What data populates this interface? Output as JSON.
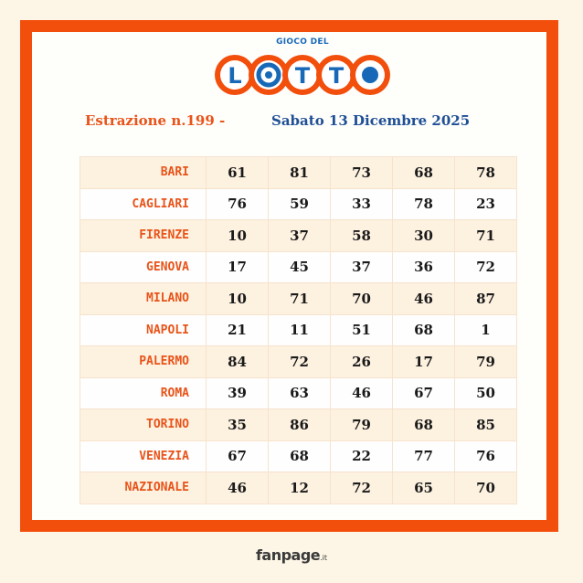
{
  "logo": {
    "small_text": "GIOCO DEL",
    "letters": [
      "L",
      "T",
      "T"
    ]
  },
  "header": {
    "draw_label": "Estrazione n.199 -",
    "date": "Sabato 13 Dicembre 2025"
  },
  "rows": [
    {
      "city": "BARI",
      "numbers": [
        "61",
        "81",
        "73",
        "68",
        "78"
      ]
    },
    {
      "city": "CAGLIARI",
      "numbers": [
        "76",
        "59",
        "33",
        "78",
        "23"
      ]
    },
    {
      "city": "FIRENZE",
      "numbers": [
        "10",
        "37",
        "58",
        "30",
        "71"
      ]
    },
    {
      "city": "GENOVA",
      "numbers": [
        "17",
        "45",
        "37",
        "36",
        "72"
      ]
    },
    {
      "city": "MILANO",
      "numbers": [
        "10",
        "71",
        "70",
        "46",
        "87"
      ]
    },
    {
      "city": "NAPOLI",
      "numbers": [
        "21",
        "11",
        "51",
        "68",
        "1"
      ]
    },
    {
      "city": "PALERMO",
      "numbers": [
        "84",
        "72",
        "26",
        "17",
        "79"
      ]
    },
    {
      "city": "ROMA",
      "numbers": [
        "39",
        "63",
        "46",
        "67",
        "50"
      ]
    },
    {
      "city": "TORINO",
      "numbers": [
        "35",
        "86",
        "79",
        "68",
        "85"
      ]
    },
    {
      "city": "VENEZIA",
      "numbers": [
        "67",
        "68",
        "22",
        "77",
        "76"
      ]
    },
    {
      "city": "NAZIONALE",
      "numbers": [
        "46",
        "12",
        "72",
        "65",
        "70"
      ]
    }
  ],
  "footer": {
    "brand": "fanpage",
    "tld": ".it"
  },
  "colors": {
    "frame": "#f24e0c",
    "city_text": "#e8541a",
    "date_text": "#1f4f95",
    "logo_blue": "#1769b8"
  }
}
